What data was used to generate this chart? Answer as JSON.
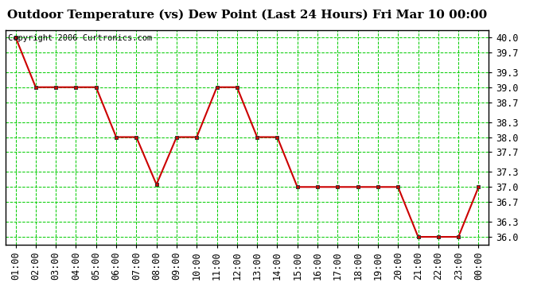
{
  "title": "Outdoor Temperature (vs) Dew Point (Last 24 Hours) Fri Mar 10 00:00",
  "copyright": "Copyright 2006 Curtronics.com",
  "x_labels": [
    "01:00",
    "02:00",
    "03:00",
    "04:00",
    "05:00",
    "06:00",
    "07:00",
    "08:00",
    "09:00",
    "10:00",
    "11:00",
    "12:00",
    "13:00",
    "14:00",
    "15:00",
    "16:00",
    "17:00",
    "18:00",
    "19:00",
    "20:00",
    "21:00",
    "22:00",
    "23:00",
    "00:00"
  ],
  "y_values": [
    40.0,
    39.0,
    39.0,
    39.0,
    39.0,
    38.0,
    38.0,
    37.05,
    38.0,
    38.0,
    39.0,
    39.0,
    38.0,
    38.0,
    37.0,
    37.0,
    37.0,
    37.0,
    37.0,
    37.0,
    36.0,
    36.0,
    36.0,
    37.0
  ],
  "y_ticks": [
    36.0,
    36.3,
    36.7,
    37.0,
    37.3,
    37.7,
    38.0,
    38.3,
    38.7,
    39.0,
    39.3,
    39.7,
    40.0
  ],
  "ylim": [
    35.85,
    40.15
  ],
  "line_color": "#cc0000",
  "marker_color": "#333333",
  "bg_color": "#ffffff",
  "plot_bg_color": "#ffffff",
  "grid_color": "#00cc00",
  "title_fontsize": 11,
  "copyright_fontsize": 7.5,
  "tick_fontsize": 8.5,
  "title_color": "#000000",
  "copyright_color": "#000000"
}
